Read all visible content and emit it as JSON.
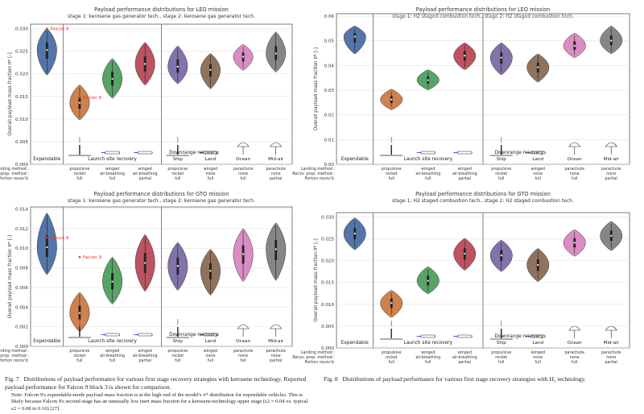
{
  "common": {
    "ylabel": "Overall payload mass fraction π* [-]",
    "row_labels": [
      "Landing method :",
      "Recov. prop. method :",
      "Portion recov'd:"
    ],
    "col_labels": [
      [
        "propulsive",
        "rocket",
        "full"
      ],
      [
        "winged",
        "air-breathing",
        "full"
      ],
      [
        "winged",
        "air-breathing",
        "partial"
      ],
      [
        "propulsive",
        "rocket",
        "full"
      ],
      [
        "winged",
        "none",
        "full"
      ],
      [
        "parachute",
        "none",
        "full"
      ],
      [
        "parachute",
        "none",
        "partial"
      ]
    ],
    "group_labels": [
      "Expendable",
      "Launch site recovery",
      "Downrange recovery:"
    ],
    "ship": "Ship",
    "land": "Land",
    "ocean": "Ocean",
    "midair": "Mid-air",
    "colors": [
      "#4a6fa5",
      "#cc7a45",
      "#4f9e5e",
      "#b94a57",
      "#7b6ca7",
      "#8b6b54",
      "#d887c0",
      "#7f7f7f"
    ]
  },
  "charts": [
    {
      "title": "Payload performance distributions for LEO mission",
      "subtitle": "stage 1: kerosene gas generator tech., stage 2: kerosene gas generator tech.",
      "annot": [
        "Falcon 9",
        "Falcon 9"
      ],
      "yticks": [
        "0.000",
        "0.005",
        "0.010",
        "0.015",
        "0.020",
        "0.025",
        "0.030"
      ],
      "chart_data": {
        "type": "violin",
        "ylim": [
          0,
          0.031
        ],
        "categories": [
          "Expendable",
          "propulsive rocket full",
          "winged air-breathing full",
          "winged air-breathing partial",
          "propulsive rocket full (ship)",
          "winged none full (land)",
          "parachute none full (ocean)",
          "parachute none partial (mid-air)"
        ],
        "median": [
          0.0253,
          0.0136,
          0.0189,
          0.0222,
          0.0216,
          0.0209,
          0.0238,
          0.0245
        ],
        "low": [
          0.0197,
          0.0098,
          0.0146,
          0.0175,
          0.0178,
          0.0167,
          0.0208,
          0.0204
        ],
        "high": [
          0.0301,
          0.0176,
          0.0234,
          0.027,
          0.0262,
          0.0245,
          0.0265,
          0.0293
        ],
        "falcon9": [
          0.03,
          0.0148
        ]
      }
    },
    {
      "title": "Payload performance distributions for LEO mission",
      "subtitle": "stage 1: H2 staged combustion tech., stage 2: H2 staged combustion tech.",
      "annot": [],
      "yticks": [
        "0.00",
        "0.01",
        "0.02",
        "0.03",
        "0.04",
        "0.05",
        "0.06"
      ],
      "chart_data": {
        "type": "violin",
        "ylim": [
          0,
          0.061
        ],
        "categories": [
          "Expendable",
          "propulsive rocket full",
          "winged air-breathing full",
          "winged air-breathing partial",
          "propulsive rocket full (ship)",
          "winged none full (land)",
          "parachute none full (ocean)",
          "parachute none partial (mid-air)"
        ],
        "median": [
          0.0517,
          0.0262,
          0.0341,
          0.044,
          0.0432,
          0.0393,
          0.048,
          0.0501
        ],
        "low": [
          0.0447,
          0.0221,
          0.0302,
          0.0383,
          0.0362,
          0.0333,
          0.0432,
          0.0448
        ],
        "high": [
          0.056,
          0.0304,
          0.0383,
          0.0492,
          0.0492,
          0.0447,
          0.0531,
          0.056
        ]
      }
    },
    {
      "title": "Payload performance distributions for GTO mission",
      "subtitle": "stage 1: kerosene gas generator tech., stage 2: kerosene gas generator tech.",
      "annot": [
        "Falcon 9",
        "Falcon 9"
      ],
      "yticks": [
        "0.000",
        "0.002",
        "0.004",
        "0.006",
        "0.008",
        "0.010",
        "0.012",
        "0.014"
      ],
      "chart_data": {
        "type": "violin",
        "ylim": [
          0,
          0.0142
        ],
        "categories": [
          "Expendable",
          "propulsive rocket full",
          "winged air-breathing full",
          "winged air-breathing partial",
          "propulsive rocket full (ship)",
          "winged none full (land)",
          "parachute none full (ocean)",
          "parachute none partial (mid-air)"
        ],
        "median": [
          0.0101,
          0.0034,
          0.0066,
          0.0085,
          0.0082,
          0.0077,
          0.0094,
          0.0099
        ],
        "low": [
          0.0073,
          0.0015,
          0.0043,
          0.0056,
          0.0057,
          0.0052,
          0.0066,
          0.0067
        ],
        "high": [
          0.0136,
          0.0055,
          0.0091,
          0.0114,
          0.0106,
          0.0099,
          0.012,
          0.0126
        ],
        "falcon9": [
          0.0111,
          0.0091
        ]
      }
    },
    {
      "title": "Payload performance distributions for GTO mission",
      "subtitle": "stage 1: H2 staged combustion tech., stage 2: H2 staged combustion tech.",
      "annot": [],
      "yticks": [
        "0.000",
        "0.005",
        "0.010",
        "0.015",
        "0.020",
        "0.025",
        "0.030"
      ],
      "chart_data": {
        "type": "violin",
        "ylim": [
          0,
          0.031
        ],
        "categories": [
          "Expendable",
          "propulsive rocket full",
          "winged air-breathing full",
          "winged air-breathing partial",
          "propulsive rocket full (ship)",
          "winged none full (land)",
          "parachute none full (ocean)",
          "parachute none partial (mid-air)"
        ],
        "median": [
          0.0262,
          0.0103,
          0.0154,
          0.0216,
          0.0212,
          0.019,
          0.0241,
          0.0257
        ],
        "low": [
          0.0225,
          0.007,
          0.0124,
          0.0178,
          0.0175,
          0.0152,
          0.021,
          0.0223
        ],
        "high": [
          0.0298,
          0.0132,
          0.0186,
          0.0251,
          0.0247,
          0.0228,
          0.0271,
          0.029
        ]
      }
    }
  ],
  "captions": {
    "fig7_label": "Fig. 7",
    "fig7_text": "Distributions of payload performance for various first stage recovery strategies with kerosene technology. Reported payload performance for Falcon 9 block 3 is shown for comparison.",
    "fig7_note": "Note: Falcon 9's expendable-mode payload mass fraction is at the high end of the model's π* distribution for expendable vehicles. This is likely because Falcon 9's second stage has an unusually low inert mass fraction for a kerosene-technology upper stage (ε2 = 0.04 vs. typical ε2 = 0.08 to 0.10) [27].",
    "fig8_label": "Fig. 8",
    "fig8_text": "Distributions of payload performance for various first stage recovery strategies with H₂ technology."
  }
}
